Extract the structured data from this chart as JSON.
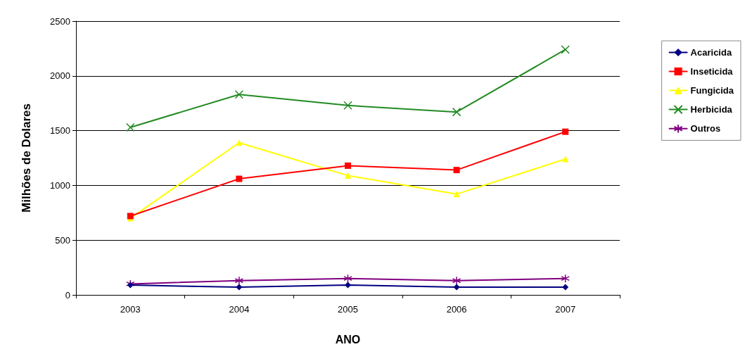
{
  "chart_data": {
    "type": "line",
    "xlabel": "ANO",
    "ylabel": "Milhões de Dolares",
    "categories": [
      "2003",
      "2004",
      "2005",
      "2006",
      "2007"
    ],
    "series": [
      {
        "name": "Acaricida",
        "color": "#000080",
        "marker": "diamond",
        "values": [
          90,
          70,
          90,
          70,
          70
        ]
      },
      {
        "name": "Inseticida",
        "color": "#ff0000",
        "marker": "square",
        "values": [
          720,
          1060,
          1180,
          1140,
          1490
        ]
      },
      {
        "name": "Fungicida",
        "color": "#ffff00",
        "marker": "triangle",
        "values": [
          700,
          1390,
          1090,
          920,
          1240
        ]
      },
      {
        "name": "Herbicida",
        "color": "#228b22",
        "marker": "cross",
        "values": [
          1530,
          1830,
          1730,
          1670,
          2240
        ]
      },
      {
        "name": "Outros",
        "color": "#800080",
        "marker": "star",
        "values": [
          100,
          130,
          150,
          130,
          150
        ]
      }
    ],
    "ylim": [
      0,
      2500
    ],
    "yticks": [
      0,
      500,
      1000,
      1500,
      2000,
      2500
    ],
    "grid": "y",
    "legend": "right",
    "line_style": "solid"
  }
}
